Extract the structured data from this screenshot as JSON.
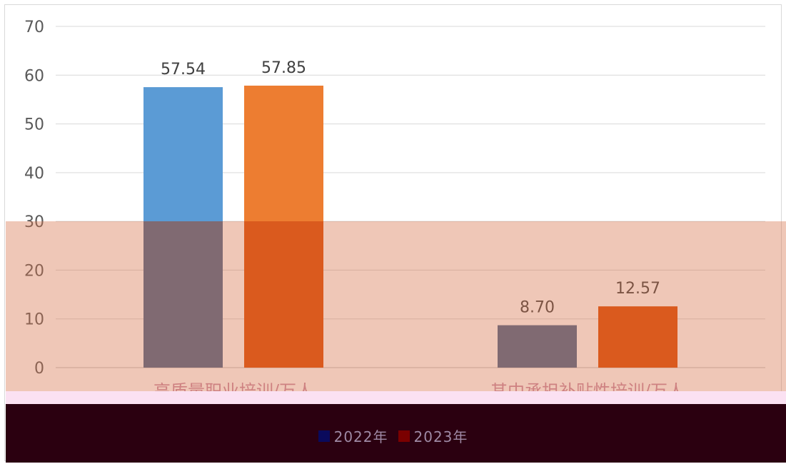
{
  "chart_data": {
    "type": "bar",
    "categories": [
      "高质量职业培训/万人",
      "其中承担补贴性培训/万人"
    ],
    "series": [
      {
        "name": "2022年",
        "values": [
          57.54,
          8.7
        ],
        "color": "#5b9bd5",
        "overlay_color": "#47648d"
      },
      {
        "name": "2023年",
        "values": [
          57.85,
          12.57
        ],
        "color": "#ed7d31",
        "overlay_color": "#dc4a00"
      }
    ],
    "data_labels": [
      [
        "57.54",
        "8.70"
      ],
      [
        "57.85",
        "12.57"
      ]
    ],
    "ylim": [
      0,
      70
    ],
    "yticks": [
      "0",
      "10",
      "20",
      "30",
      "40",
      "50",
      "60",
      "70"
    ],
    "grid": true,
    "legend_position": "bottom",
    "title": "",
    "xlabel": "",
    "ylabel": ""
  },
  "legend": {
    "items": [
      {
        "label": "2022年",
        "color": "#0a0a5c"
      },
      {
        "label": "2023年",
        "color": "#7a0000"
      }
    ]
  }
}
